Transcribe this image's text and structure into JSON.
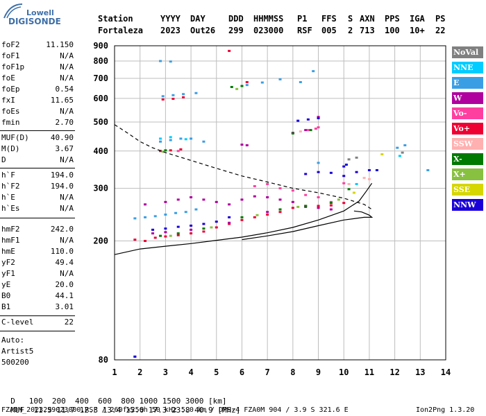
{
  "logo": {
    "line1": "Lowell",
    "line2": "DIGISONDE"
  },
  "header": {
    "labels": [
      "Station",
      "YYYY",
      "DAY",
      "DDD",
      "HHMMSS",
      "P1",
      "FFS",
      "S",
      "AXN",
      "PPS",
      "IGA",
      "PS"
    ],
    "values": [
      "Fortaleza",
      "2023",
      "Out26",
      "299",
      "023000",
      "RSF",
      "005",
      "2",
      "713",
      "100",
      "10+",
      "22"
    ]
  },
  "params": {
    "group1": [
      {
        "name": "foF2",
        "value": "11.150"
      },
      {
        "name": "foF1",
        "value": "N/A"
      },
      {
        "name": "foF1p",
        "value": "N/A"
      },
      {
        "name": "foE",
        "value": "N/A"
      },
      {
        "name": "foEp",
        "value": "0.54"
      },
      {
        "name": "fxI",
        "value": "11.65"
      },
      {
        "name": "foEs",
        "value": "N/A"
      },
      {
        "name": "fmin",
        "value": "2.70"
      }
    ],
    "group2": [
      {
        "name": "MUF(D)",
        "value": "40.90"
      },
      {
        "name": "M(D)",
        "value": "3.67"
      },
      {
        "name": "D",
        "value": "N/A"
      }
    ],
    "group3": [
      {
        "name": "h`F",
        "value": "194.0"
      },
      {
        "name": "h`F2",
        "value": "194.0"
      },
      {
        "name": "h`E",
        "value": "N/A"
      },
      {
        "name": "h`Es",
        "value": "N/A"
      }
    ],
    "group4": [
      {
        "name": "hmF2",
        "value": "242.0"
      },
      {
        "name": "hmF1",
        "value": "N/A"
      },
      {
        "name": "hmE",
        "value": "110.0"
      },
      {
        "name": "yF2",
        "value": "49.4"
      },
      {
        "name": "yF1",
        "value": "N/A"
      },
      {
        "name": "yE",
        "value": "20.0"
      },
      {
        "name": "B0",
        "value": "44.1"
      },
      {
        "name": "B1",
        "value": "3.01"
      }
    ],
    "group5": [
      {
        "name": "C-level",
        "value": "22"
      }
    ],
    "auto": [
      "Auto:",
      "Artist5",
      "500200"
    ]
  },
  "legend": [
    {
      "label": "NoVal",
      "color": "#808080"
    },
    {
      "label": "NNE",
      "color": "#00ccff"
    },
    {
      "label": "E",
      "color": "#3a9ee4"
    },
    {
      "label": "W",
      "color": "#b0009e"
    },
    {
      "label": "Vo-",
      "color": "#ff3fa0"
    },
    {
      "label": "Vo+",
      "color": "#ee0033"
    },
    {
      "label": "SSW",
      "color": "#ffb0b0"
    },
    {
      "label": "X-",
      "color": "#007a00"
    },
    {
      "label": "X+",
      "color": "#88c040"
    },
    {
      "label": "SSE",
      "color": "#d6d600"
    },
    {
      "label": "NNW",
      "color": "#1a00d8"
    }
  ],
  "footer": {
    "row1_label": "D",
    "row1_values": [
      "100",
      "200",
      "400",
      "600",
      "800",
      "1000",
      "1500",
      "3000"
    ],
    "row1_unit": "[km]",
    "row2_label": "MUF",
    "row2_values": [
      "11.5",
      "11.7",
      "12.3",
      "13.4",
      "15.0",
      "17.3",
      "23.8",
      "40.9"
    ],
    "row2_unit": "[MHz]",
    "info": "FZA0M_2023299023000.RSF / 260fx256h 50 kHz 5.0 km / DPS-4 FZA0M 904 / 3.9 S 321.6 E",
    "version": "Ion2Png 1.3.20"
  },
  "chart_data": {
    "type": "scatter",
    "xlabel": "",
    "ylabel": "",
    "xlim": [
      1,
      14
    ],
    "ylim": [
      80,
      900
    ],
    "y_scale": "log",
    "grid": true,
    "x_ticks": [
      1,
      2,
      3,
      4,
      5,
      6,
      7,
      8,
      9,
      10,
      11,
      12,
      13,
      14
    ],
    "y_ticks": [
      80,
      200,
      300,
      400,
      500,
      600,
      700,
      800,
      900
    ],
    "series": [
      {
        "name": "Vo+",
        "points": [
          [
            1.8,
            202
          ],
          [
            2.2,
            200
          ],
          [
            2.6,
            205
          ],
          [
            3.0,
            207
          ],
          [
            3.5,
            209
          ],
          [
            4.0,
            212
          ],
          [
            4.5,
            215
          ],
          [
            5.0,
            222
          ],
          [
            5.5,
            228
          ],
          [
            6.0,
            235
          ],
          [
            6.5,
            240
          ],
          [
            7.0,
            245
          ],
          [
            7.5,
            250
          ],
          [
            8.0,
            258
          ],
          [
            8.5,
            262
          ],
          [
            9.0,
            262
          ],
          [
            9.5,
            263
          ],
          [
            10.0,
            268
          ],
          [
            2.8,
            400
          ],
          [
            3.2,
            402
          ],
          [
            3.6,
            405
          ],
          [
            2.9,
            595
          ],
          [
            3.3,
            598
          ],
          [
            3.7,
            605
          ],
          [
            6.2,
            680
          ],
          [
            5.5,
            865
          ],
          [
            1.8,
            82
          ]
        ]
      },
      {
        "name": "W",
        "points": [
          [
            2.2,
            265
          ],
          [
            3.0,
            270
          ],
          [
            3.5,
            275
          ],
          [
            4.0,
            280
          ],
          [
            4.5,
            275
          ],
          [
            5.0,
            270
          ],
          [
            5.5,
            265
          ],
          [
            6.0,
            275
          ],
          [
            6.5,
            282
          ],
          [
            7.0,
            280
          ],
          [
            7.5,
            275
          ],
          [
            8.0,
            270
          ],
          [
            8.5,
            260
          ],
          [
            9.0,
            258
          ],
          [
            9.5,
            255
          ],
          [
            2.5,
            212
          ],
          [
            3.0,
            214
          ],
          [
            4.0,
            218
          ],
          [
            5.5,
            230
          ],
          [
            7.0,
            250
          ],
          [
            8.0,
            460
          ],
          [
            8.5,
            470
          ],
          [
            9.0,
            520
          ],
          [
            6.0,
            420
          ],
          [
            6.2,
            418
          ]
        ]
      },
      {
        "name": "Vo-",
        "points": [
          [
            6.5,
            305
          ],
          [
            7.0,
            310
          ],
          [
            7.5,
            300
          ],
          [
            8.0,
            295
          ],
          [
            8.5,
            285
          ],
          [
            9.0,
            280
          ],
          [
            9.5,
            270
          ],
          [
            8.6,
            470
          ],
          [
            8.9,
            475
          ],
          [
            9.0,
            480
          ],
          [
            3.5,
            400
          ],
          [
            10.0,
            312
          ]
        ]
      },
      {
        "name": "NNW",
        "points": [
          [
            2.5,
            218
          ],
          [
            3.0,
            220
          ],
          [
            3.5,
            223
          ],
          [
            4.0,
            225
          ],
          [
            4.5,
            228
          ],
          [
            5.0,
            232
          ],
          [
            5.5,
            240
          ],
          [
            8.5,
            335
          ],
          [
            9.0,
            340
          ],
          [
            9.5,
            338
          ],
          [
            10.0,
            330
          ],
          [
            10.5,
            340
          ],
          [
            11.0,
            345
          ],
          [
            11.3,
            345
          ],
          [
            8.2,
            505
          ],
          [
            8.6,
            510
          ],
          [
            9.0,
            515
          ],
          [
            1.8,
            82
          ],
          [
            10.0,
            355
          ],
          [
            10.1,
            360
          ]
        ]
      },
      {
        "name": "E",
        "points": [
          [
            1.8,
            238
          ],
          [
            2.2,
            240
          ],
          [
            2.6,
            242
          ],
          [
            3.0,
            245
          ],
          [
            3.4,
            248
          ],
          [
            3.8,
            250
          ],
          [
            4.2,
            255
          ],
          [
            2.8,
            430
          ],
          [
            3.2,
            435
          ],
          [
            3.6,
            440
          ],
          [
            4.0,
            440
          ],
          [
            4.5,
            430
          ],
          [
            2.9,
            610
          ],
          [
            3.3,
            615
          ],
          [
            3.7,
            620
          ],
          [
            4.2,
            625
          ],
          [
            6.2,
            665
          ],
          [
            6.8,
            678
          ],
          [
            7.5,
            695
          ],
          [
            8.3,
            680
          ],
          [
            8.8,
            740
          ],
          [
            2.8,
            800
          ],
          [
            3.2,
            797
          ],
          [
            12.1,
            410
          ],
          [
            12.4,
            418
          ],
          [
            13.3,
            345
          ],
          [
            9.0,
            365
          ]
        ]
      },
      {
        "name": "NNE",
        "points": [
          [
            2.8,
            440
          ],
          [
            3.2,
            445
          ],
          [
            3.8,
            438
          ],
          [
            12.2,
            385
          ],
          [
            10.5,
            310
          ]
        ]
      },
      {
        "name": "X-",
        "points": [
          [
            2.8,
            208
          ],
          [
            3.5,
            212
          ],
          [
            4.5,
            220
          ],
          [
            6.0,
            240
          ],
          [
            7.5,
            255
          ],
          [
            8.5,
            262
          ],
          [
            9.5,
            268
          ],
          [
            10.2,
            298
          ],
          [
            5.6,
            655
          ],
          [
            6.0,
            660
          ],
          [
            8.7,
            470
          ],
          [
            3.0,
            402
          ],
          [
            8.0,
            458
          ]
        ]
      },
      {
        "name": "X+",
        "points": [
          [
            3.2,
            208
          ],
          [
            4.8,
            222
          ],
          [
            6.6,
            244
          ],
          [
            8.2,
            260
          ],
          [
            9.8,
            275
          ],
          [
            5.8,
            645
          ],
          [
            2.9,
            398
          ]
        ]
      },
      {
        "name": "SSW",
        "points": [
          [
            10.8,
            325
          ],
          [
            11.0,
            322
          ],
          [
            8.3,
            465
          ],
          [
            10.2,
            310
          ]
        ]
      },
      {
        "name": "SSE",
        "points": [
          [
            10.4,
            290
          ],
          [
            11.5,
            390
          ]
        ]
      },
      {
        "name": "NoVal",
        "points": [
          [
            10.5,
            380
          ],
          [
            10.2,
            375
          ],
          [
            12.3,
            395
          ]
        ]
      }
    ],
    "curves": [
      {
        "name": "muf-dashed",
        "points": [
          [
            1.0,
            490
          ],
          [
            1.5,
            460
          ],
          [
            2.0,
            430
          ],
          [
            2.5,
            410
          ],
          [
            3.0,
            395
          ],
          [
            4.0,
            372
          ],
          [
            5.0,
            350
          ],
          [
            6.0,
            330
          ],
          [
            7.0,
            315
          ],
          [
            8.0,
            300
          ],
          [
            9.0,
            290
          ],
          [
            10.0,
            278
          ],
          [
            10.8,
            265
          ],
          [
            11.1,
            255
          ]
        ]
      },
      {
        "name": "ordinary-trace",
        "points": [
          [
            1.0,
            180
          ],
          [
            2.0,
            188
          ],
          [
            3.0,
            192
          ],
          [
            4.0,
            196
          ],
          [
            5.0,
            201
          ],
          [
            6.0,
            206
          ],
          [
            7.0,
            213
          ],
          [
            8.0,
            222
          ],
          [
            9.0,
            235
          ],
          [
            10.0,
            252
          ],
          [
            10.6,
            272
          ],
          [
            10.9,
            295
          ],
          [
            11.1,
            312
          ]
        ]
      },
      {
        "name": "extraordinary-trace",
        "points": [
          [
            6.0,
            202
          ],
          [
            7.0,
            208
          ],
          [
            8.0,
            215
          ],
          [
            9.0,
            225
          ],
          [
            10.0,
            235
          ],
          [
            10.8,
            240
          ],
          [
            11.1,
            240
          ],
          [
            11.0,
            244
          ],
          [
            10.7,
            250
          ],
          [
            10.4,
            252
          ]
        ]
      }
    ]
  }
}
